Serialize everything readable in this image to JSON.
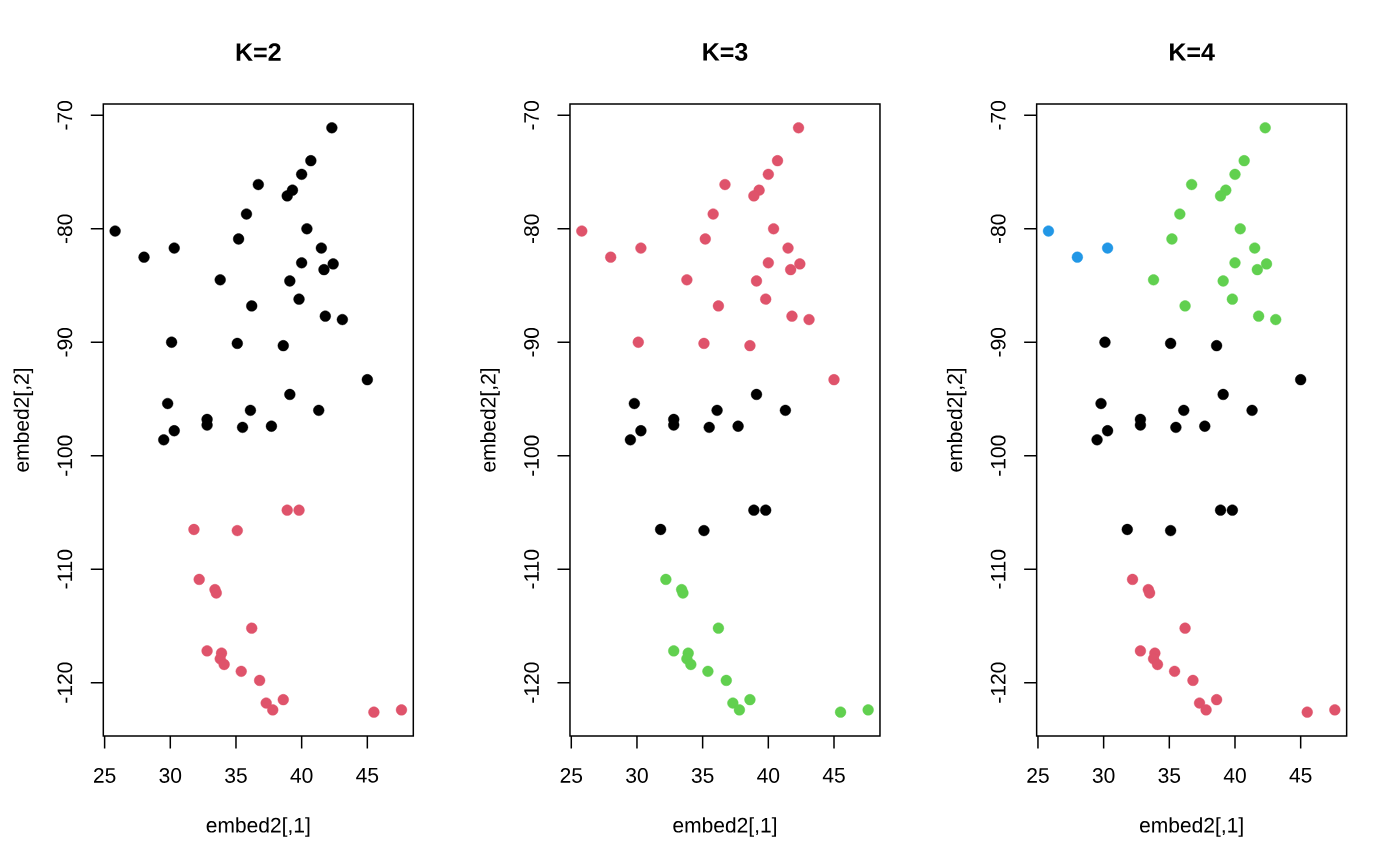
{
  "chart_data": [
    {
      "type": "scatter",
      "title": "K=2",
      "xlabel": "embed2[,1]",
      "ylabel": "embed2[,2]",
      "xlim": [
        24.9,
        48.5
      ],
      "ylim": [
        -124.7,
        -69.0
      ],
      "xticks": [
        25,
        30,
        35,
        40,
        45
      ],
      "yticks": [
        -120,
        -110,
        -100,
        -90,
        -80,
        -70
      ],
      "marker": "circle",
      "series": [
        {
          "color": "#000000",
          "x": [
            42.3,
            40.7,
            40.0,
            36.7,
            39.3,
            38.9,
            35.8,
            25.8,
            40.4,
            35.2,
            30.3,
            41.5,
            28.0,
            40.0,
            42.4,
            41.7,
            33.8,
            39.1,
            39.8,
            36.2,
            41.8,
            43.1,
            30.1,
            35.1,
            38.6,
            45.0,
            39.1,
            29.8,
            36.1,
            41.3,
            32.8,
            32.8,
            30.3,
            35.5,
            37.7,
            29.5
          ],
          "values": [
            -71.1,
            -74.0,
            -75.2,
            -76.1,
            -76.6,
            -77.1,
            -78.7,
            -80.2,
            -80.0,
            -80.9,
            -81.7,
            -81.7,
            -82.5,
            -83.0,
            -83.1,
            -83.6,
            -84.5,
            -84.6,
            -86.2,
            -86.8,
            -87.7,
            -88.0,
            -90.0,
            -90.1,
            -90.3,
            -93.3,
            -94.6,
            -95.4,
            -96.0,
            -96.0,
            -96.8,
            -97.3,
            -97.8,
            -97.5,
            -97.4,
            -98.6
          ]
        },
        {
          "color": "#df536b",
          "x": [
            38.9,
            39.8,
            31.8,
            35.1,
            32.2,
            33.4,
            33.5,
            36.2,
            32.8,
            33.9,
            33.8,
            34.1,
            35.4,
            36.8,
            38.6,
            37.3,
            37.8,
            45.5,
            47.6
          ],
          "values": [
            -104.8,
            -104.8,
            -106.5,
            -106.6,
            -110.9,
            -111.8,
            -112.1,
            -115.2,
            -117.2,
            -117.4,
            -117.9,
            -118.4,
            -119.0,
            -119.8,
            -121.5,
            -121.8,
            -122.4,
            -122.6,
            -122.4
          ]
        }
      ]
    },
    {
      "type": "scatter",
      "title": "K=3",
      "xlabel": "embed2[,1]",
      "ylabel": "embed2[,2]",
      "xlim": [
        24.9,
        48.5
      ],
      "ylim": [
        -124.7,
        -69.0
      ],
      "xticks": [
        25,
        30,
        35,
        40,
        45
      ],
      "yticks": [
        -120,
        -110,
        -100,
        -90,
        -80,
        -70
      ],
      "marker": "circle",
      "series": [
        {
          "color": "#000000",
          "x": [
            39.1,
            29.8,
            36.1,
            41.3,
            32.8,
            32.8,
            30.3,
            35.5,
            37.7,
            29.5,
            38.9,
            39.8,
            31.8,
            35.1
          ],
          "values": [
            -94.6,
            -95.4,
            -96.0,
            -96.0,
            -96.8,
            -97.3,
            -97.8,
            -97.5,
            -97.4,
            -98.6,
            -104.8,
            -104.8,
            -106.5,
            -106.6
          ]
        },
        {
          "color": "#df536b",
          "x": [
            42.3,
            40.7,
            40.0,
            36.7,
            39.3,
            38.9,
            35.8,
            25.8,
            40.4,
            35.2,
            30.3,
            41.5,
            28.0,
            40.0,
            42.4,
            41.7,
            33.8,
            39.1,
            39.8,
            36.2,
            41.8,
            43.1,
            30.1,
            35.1,
            38.6,
            45.0
          ],
          "values": [
            -71.1,
            -74.0,
            -75.2,
            -76.1,
            -76.6,
            -77.1,
            -78.7,
            -80.2,
            -80.0,
            -80.9,
            -81.7,
            -81.7,
            -82.5,
            -83.0,
            -83.1,
            -83.6,
            -84.5,
            -84.6,
            -86.2,
            -86.8,
            -87.7,
            -88.0,
            -90.0,
            -90.1,
            -90.3,
            -93.3
          ]
        },
        {
          "color": "#61d04f",
          "x": [
            32.2,
            33.4,
            33.5,
            36.2,
            32.8,
            33.9,
            33.8,
            34.1,
            35.4,
            36.8,
            38.6,
            37.3,
            37.8,
            45.5,
            47.6
          ],
          "values": [
            -110.9,
            -111.8,
            -112.1,
            -115.2,
            -117.2,
            -117.4,
            -117.9,
            -118.4,
            -119.0,
            -119.8,
            -121.5,
            -121.8,
            -122.4,
            -122.6,
            -122.4
          ]
        }
      ]
    },
    {
      "type": "scatter",
      "title": "K=4",
      "xlabel": "embed2[,1]",
      "ylabel": "embed2[,2]",
      "xlim": [
        24.9,
        48.5
      ],
      "ylim": [
        -124.7,
        -69.0
      ],
      "xticks": [
        25,
        30,
        35,
        40,
        45
      ],
      "yticks": [
        -120,
        -110,
        -100,
        -90,
        -80,
        -70
      ],
      "marker": "circle",
      "series": [
        {
          "color": "#000000",
          "x": [
            30.1,
            35.1,
            38.6,
            45.0,
            39.1,
            29.8,
            36.1,
            41.3,
            32.8,
            32.8,
            30.3,
            35.5,
            37.7,
            29.5,
            38.9,
            39.8,
            31.8,
            35.1
          ],
          "values": [
            -90.0,
            -90.1,
            -90.3,
            -93.3,
            -94.6,
            -95.4,
            -96.0,
            -96.0,
            -96.8,
            -97.3,
            -97.8,
            -97.5,
            -97.4,
            -98.6,
            -104.8,
            -104.8,
            -106.5,
            -106.6
          ]
        },
        {
          "color": "#df536b",
          "x": [
            32.2,
            33.4,
            33.5,
            36.2,
            32.8,
            33.9,
            33.8,
            34.1,
            35.4,
            36.8,
            38.6,
            37.3,
            37.8,
            45.5,
            47.6
          ],
          "values": [
            -110.9,
            -111.8,
            -112.1,
            -115.2,
            -117.2,
            -117.4,
            -117.9,
            -118.4,
            -119.0,
            -119.8,
            -121.5,
            -121.8,
            -122.4,
            -122.6,
            -122.4
          ]
        },
        {
          "color": "#61d04f",
          "x": [
            42.3,
            40.7,
            40.0,
            36.7,
            39.3,
            38.9,
            35.8,
            40.4,
            35.2,
            41.5,
            40.0,
            42.4,
            41.7,
            33.8,
            39.1,
            39.8,
            36.2,
            41.8,
            43.1
          ],
          "values": [
            -71.1,
            -74.0,
            -75.2,
            -76.1,
            -76.6,
            -77.1,
            -78.7,
            -80.0,
            -80.9,
            -81.7,
            -83.0,
            -83.1,
            -83.6,
            -84.5,
            -84.6,
            -86.2,
            -86.8,
            -87.7,
            -88.0
          ]
        },
        {
          "color": "#2297e6",
          "x": [
            25.8,
            30.3,
            28.0
          ],
          "values": [
            -80.2,
            -81.7,
            -82.5
          ]
        }
      ]
    }
  ]
}
